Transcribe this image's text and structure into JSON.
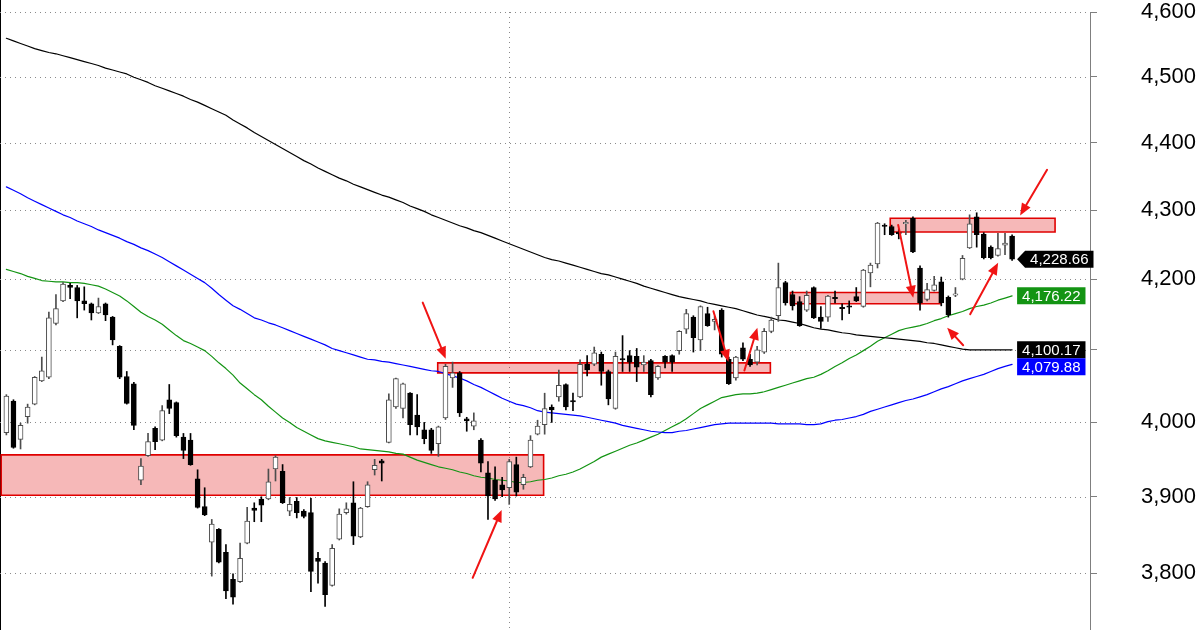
{
  "chart_data": {
    "type": "candlestick",
    "categories": [
      null,
      null,
      null,
      null,
      null,
      null,
      null,
      null,
      null,
      null,
      null,
      null,
      null,
      null,
      null,
      null,
      null,
      null,
      null,
      null,
      null,
      null,
      null,
      null,
      null,
      null,
      null,
      null,
      null,
      null,
      null,
      null,
      null,
      null,
      null,
      null,
      null,
      null,
      null,
      null,
      null,
      null,
      null,
      null,
      null,
      null,
      null,
      null,
      null,
      null,
      null,
      null,
      null,
      null,
      null,
      null,
      null,
      null,
      null,
      null,
      null,
      null,
      null,
      null,
      null,
      null,
      null,
      null,
      null,
      null,
      null,
      null,
      null,
      null,
      null,
      null,
      null,
      null,
      null,
      null,
      null,
      null,
      null,
      null,
      null,
      null,
      null,
      null,
      null,
      null,
      null,
      null,
      null,
      null,
      null,
      null,
      null,
      null,
      null,
      null,
      null,
      null,
      null,
      null,
      null,
      null,
      null,
      null,
      null,
      null,
      null,
      null,
      null,
      null,
      null,
      null,
      null,
      null,
      null,
      null,
      null,
      null,
      null,
      null,
      null,
      null,
      null,
      null,
      null,
      null,
      null,
      null,
      null,
      null,
      null,
      null,
      null,
      null,
      null,
      null,
      null,
      null,
      null
    ],
    "ohlc": [
      [
        3986,
        4038,
        3983,
        4036
      ],
      [
        4029,
        4031,
        3965,
        3966
      ],
      [
        3977,
        3999,
        3964,
        3996
      ],
      [
        4008,
        4025,
        3999,
        4021
      ],
      [
        4025,
        4063,
        4024,
        4062
      ],
      [
        4057,
        4090,
        4056,
        4071
      ],
      [
        4062,
        4153,
        4060,
        4145
      ],
      [
        4137,
        4178,
        4135,
        4158
      ],
      [
        4169,
        4195,
        4168,
        4193
      ],
      [
        4191,
        4194,
        4172,
        4188
      ],
      [
        4188,
        4191,
        4145,
        4169
      ],
      [
        4169,
        4189,
        4156,
        4165
      ],
      [
        4165,
        4166,
        4142,
        4152
      ],
      [
        4152,
        4173,
        4151,
        4161
      ],
      [
        4165,
        4166,
        4141,
        4149
      ],
      [
        4146,
        4147,
        4107,
        4114
      ],
      [
        4105,
        4106,
        4060,
        4062
      ],
      [
        4063,
        4070,
        4025,
        4026
      ],
      [
        4053,
        4055,
        3990,
        3996
      ],
      [
        3922,
        3951,
        3916,
        3941
      ],
      [
        3955,
        3985,
        3954,
        3974
      ],
      [
        3992,
        3994,
        3963,
        3974
      ],
      [
        3976,
        4023,
        3975,
        4016
      ],
      [
        4031,
        4052,
        4012,
        4019
      ],
      [
        4027,
        4028,
        3980,
        3982
      ],
      [
        3980,
        3985,
        3951,
        3962
      ],
      [
        3976,
        3985,
        3942,
        3943
      ],
      [
        3924,
        3936,
        3885,
        3886
      ],
      [
        3887,
        3912,
        3875,
        3876
      ],
      [
        3840,
        3870,
        3796,
        3864
      ],
      [
        3857,
        3858,
        3813,
        3814
      ],
      [
        3827,
        3837,
        3767,
        3777
      ],
      [
        3792,
        3799,
        3760,
        3769
      ],
      [
        3789,
        3839,
        3788,
        3819
      ],
      [
        3839,
        3886,
        3838,
        3868
      ],
      [
        3885,
        3892,
        3867,
        3882
      ],
      [
        3897,
        3900,
        3867,
        3889
      ],
      [
        3897,
        3937,
        3896,
        3920
      ],
      [
        3937,
        3955,
        3921,
        3953
      ],
      [
        3934,
        3943,
        3891,
        3892
      ],
      [
        3881,
        3899,
        3875,
        3890
      ],
      [
        3894,
        3899,
        3872,
        3879
      ],
      [
        3881,
        3883,
        3872,
        3874
      ],
      [
        3879,
        3898,
        3776,
        3802
      ],
      [
        3819,
        3827,
        3787,
        3815
      ],
      [
        3813,
        3815,
        3757,
        3772
      ],
      [
        3784,
        3837,
        3783,
        3832
      ],
      [
        3844,
        3884,
        3843,
        3877
      ],
      [
        3879,
        3892,
        3877,
        3884
      ],
      [
        3892,
        3920,
        3837,
        3848
      ],
      [
        3847,
        3886,
        3846,
        3885
      ],
      [
        3887,
        3920,
        3886,
        3916
      ],
      [
        3936,
        3950,
        3929,
        3942
      ],
      [
        3948,
        3950,
        3921,
        3945
      ],
      [
        3973,
        4039,
        3972,
        4031
      ],
      [
        4021,
        4061,
        4019,
        4060
      ],
      [
        4019,
        4054,
        4006,
        4053
      ],
      [
        4040,
        4041,
        3983,
        3997
      ],
      [
        4010,
        4038,
        3983,
        3994
      ],
      [
        3990,
        4000,
        3971,
        3978
      ],
      [
        3990,
        3992,
        3958,
        3962
      ],
      [
        3971,
        3995,
        3954,
        3994
      ],
      [
        4006,
        4080,
        4004,
        4077
      ],
      [
        4061,
        4083,
        4048,
        4068
      ],
      [
        4068,
        4070,
        4008,
        4013
      ],
      [
        4005,
        4007,
        3988,
        4002
      ],
      [
        3995,
        4013,
        3990,
        4002
      ],
      [
        3976,
        3978,
        3933,
        3945
      ],
      [
        3932,
        3947,
        3870,
        3901
      ],
      [
        3922,
        3940,
        3895,
        3897
      ],
      [
        3916,
        3926,
        3900,
        3909
      ],
      [
        3912,
        3950,
        3890,
        3947
      ],
      [
        3943,
        3953,
        3901,
        3906
      ],
      [
        3916,
        3930,
        3910,
        3926
      ],
      [
        3940,
        3982,
        3939,
        3976
      ],
      [
        3984,
        4003,
        3983,
        3995
      ],
      [
        3997,
        4040,
        3984,
        4019
      ],
      [
        4021,
        4024,
        4000,
        4017
      ],
      [
        4035,
        4072,
        4029,
        4051
      ],
      [
        4052,
        4053,
        4017,
        4021
      ],
      [
        4030,
        4040,
        4016,
        4028
      ],
      [
        4035,
        4086,
        4034,
        4080
      ],
      [
        4080,
        4092,
        4064,
        4072
      ],
      [
        4080,
        4104,
        4078,
        4096
      ],
      [
        4094,
        4097,
        4051,
        4070
      ],
      [
        4070,
        4072,
        4024,
        4032
      ],
      [
        4019,
        4097,
        4018,
        4091
      ],
      [
        4088,
        4120,
        4070,
        4086
      ],
      [
        4092,
        4099,
        4070,
        4083
      ],
      [
        4091,
        4102,
        4056,
        4076
      ],
      [
        4079,
        4092,
        4070,
        4083
      ],
      [
        4085,
        4087,
        4035,
        4038
      ],
      [
        4061,
        4078,
        4059,
        4077
      ],
      [
        4091,
        4092,
        4075,
        4083
      ],
      [
        4092,
        4093,
        4070,
        4083
      ],
      [
        4099,
        4127,
        4094,
        4126
      ],
      [
        4129,
        4157,
        4123,
        4151
      ],
      [
        4146,
        4148,
        4097,
        4117
      ],
      [
        4114,
        4162,
        4099,
        4161
      ],
      [
        4151,
        4160,
        4133,
        4134
      ],
      [
        4140,
        4147,
        4128,
        4143
      ],
      [
        4156,
        4158,
        4090,
        4094
      ],
      [
        4087,
        4090,
        4052,
        4053
      ],
      [
        4061,
        4091,
        4058,
        4090
      ],
      [
        4103,
        4110,
        4085,
        4087
      ],
      [
        4087,
        4094,
        4077,
        4079
      ],
      [
        4083,
        4105,
        4079,
        4100
      ],
      [
        4097,
        4130,
        4095,
        4126
      ],
      [
        4126,
        4146,
        4124,
        4142
      ],
      [
        4148,
        4223,
        4140,
        4188
      ],
      [
        4195,
        4197,
        4163,
        4166
      ],
      [
        4178,
        4183,
        4156,
        4162
      ],
      [
        4168,
        4175,
        4133,
        4134
      ],
      [
        4156,
        4183,
        4154,
        4177
      ],
      [
        4188,
        4189,
        4144,
        4145
      ],
      [
        4146,
        4161,
        4130,
        4140
      ],
      [
        4146,
        4177,
        4140,
        4176
      ],
      [
        4174,
        4183,
        4166,
        4172
      ],
      [
        4160,
        4165,
        4142,
        4158
      ],
      [
        4162,
        4169,
        4151,
        4160
      ],
      [
        4175,
        4188,
        4168,
        4169
      ],
      [
        4161,
        4214,
        4160,
        4213
      ],
      [
        4209,
        4223,
        4189,
        4220
      ],
      [
        4222,
        4282,
        4216,
        4281
      ],
      [
        4278,
        4280,
        4264,
        4276
      ],
      [
        4276,
        4278,
        4263,
        4264
      ],
      [
        4268,
        4272,
        4258,
        4265
      ],
      [
        4280,
        4285,
        4264,
        4282
      ],
      [
        4288,
        4290,
        4238,
        4239
      ],
      [
        4216,
        4219,
        4156,
        4166
      ],
      [
        4171,
        4194,
        4169,
        4185
      ],
      [
        4184,
        4204,
        4183,
        4192
      ],
      [
        4196,
        4203,
        4162,
        4166
      ],
      [
        4174,
        4176,
        4146,
        4149
      ],
      [
        4177,
        4188,
        4175,
        4179
      ],
      [
        4200,
        4234,
        4199,
        4230
      ],
      [
        4245,
        4293,
        4244,
        4280
      ],
      [
        4290,
        4296,
        4246,
        4264
      ],
      [
        4265,
        4267,
        4229,
        4231
      ],
      [
        4246,
        4248,
        4229,
        4231
      ],
      [
        4234,
        4266,
        4233,
        4244
      ],
      [
        4249,
        4266,
        4235,
        4252
      ],
      [
        4262,
        4264,
        4227,
        4228.66
      ]
    ],
    "series": [
      {
        "type": "line",
        "color": "#000000",
        "values": [
          4559,
          4555,
          4551,
          4547,
          4543,
          4540,
          4537,
          4535,
          4532,
          4529,
          4526,
          4523,
          4520,
          4517,
          4513,
          4510,
          4507,
          4504,
          4499,
          4495,
          4491,
          4486,
          4482,
          4478,
          4474,
          4470,
          4465,
          4461,
          4456,
          4451,
          4446,
          4441,
          4434,
          4428,
          4422,
          4415,
          4409,
          4403,
          4397,
          4391,
          4385,
          4379,
          4373,
          4368,
          4362,
          4357,
          4352,
          4347,
          4343,
          4338,
          4334,
          4330,
          4326,
          4322,
          4319,
          4315,
          4311,
          4306,
          4302,
          4298,
          4293,
          4289,
          4285,
          4281,
          4277,
          4274,
          4270,
          4267,
          4263,
          4259,
          4255,
          4251,
          4247,
          4243,
          4239,
          4235,
          4231,
          4228,
          4226,
          4223,
          4220,
          4217,
          4214,
          4211,
          4208,
          4206,
          4203,
          4200,
          4197,
          4194,
          4190,
          4187,
          4184,
          4181,
          4178,
          4175,
          4173,
          4171,
          4169,
          4166,
          4164,
          4162,
          4160,
          4158,
          4155,
          4152,
          4149,
          4147,
          4145,
          4142,
          4141,
          4139,
          4137,
          4134,
          4131,
          4129,
          4128,
          4126,
          4124,
          4123,
          4121,
          4120,
          4119,
          4118,
          4117,
          4116,
          4115,
          4114,
          4113,
          4112,
          4110,
          4109,
          4107,
          4105,
          4103,
          4101,
          4100,
          4100,
          4100,
          4100,
          4100,
          4100,
          4100.17
        ],
        "value_labels": [
          null,
          null,
          null,
          null,
          null,
          null,
          null,
          null,
          null,
          null,
          null,
          null,
          null,
          null,
          null,
          null,
          null,
          null,
          null,
          null,
          null,
          null,
          null,
          null,
          null,
          null,
          null,
          null,
          null,
          null,
          null,
          null,
          null,
          null,
          null,
          null,
          null,
          null,
          null,
          null,
          null,
          null,
          null,
          null,
          null,
          null,
          null,
          null,
          null,
          null,
          null,
          null,
          null,
          null,
          null,
          null,
          null,
          null,
          null,
          null,
          null,
          null,
          null,
          null,
          null,
          null,
          null,
          null,
          null,
          null,
          null,
          null,
          null,
          null,
          null,
          null,
          null,
          null,
          null,
          null,
          null,
          null,
          null,
          null,
          null,
          null,
          null,
          null,
          null,
          null,
          null,
          null,
          null,
          null,
          null,
          null,
          null,
          null,
          null,
          null,
          null,
          null,
          null,
          null,
          null,
          null,
          null,
          null,
          null,
          null,
          null,
          null,
          null,
          null,
          null,
          null,
          null,
          null,
          null,
          null,
          null,
          null,
          null,
          null,
          null,
          null,
          null,
          null,
          null,
          null,
          null,
          null,
          null,
          null,
          null,
          null,
          null,
          null,
          null,
          null,
          null,
          null,
          "4,100.17"
        ]
      },
      {
        "type": "line",
        "color": "#0000ff",
        "values": [
          4334,
          4329,
          4324,
          4318,
          4313,
          4308,
          4303,
          4298,
          4293,
          4289,
          4284,
          4280,
          4276,
          4271,
          4267,
          4263,
          4259,
          4254,
          4250,
          4245,
          4241,
          4236,
          4231,
          4225,
          4219,
          4213,
          4207,
          4201,
          4195,
          4187,
          4178,
          4170,
          4162,
          4157,
          4151,
          4145,
          4142,
          4138,
          4135,
          4131,
          4127,
          4123,
          4119,
          4115,
          4111,
          4107,
          4102,
          4099,
          4096,
          4093,
          4090,
          4087,
          4086,
          4084,
          4083,
          4081,
          4079,
          4077,
          4075,
          4073,
          4071,
          4070,
          4067,
          4064,
          4061,
          4057,
          4052,
          4048,
          4043,
          4038,
          4033,
          4029,
          4025,
          4023,
          4020,
          4016,
          4014,
          4013,
          4012,
          4011,
          4010,
          4009,
          4007,
          4005,
          4003,
          4001,
          3999,
          3996,
          3994,
          3992,
          3990,
          3988,
          3987,
          3986,
          3986,
          3988,
          3989,
          3991,
          3993,
          3995,
          3997,
          3998,
          3999,
          3999,
          3999,
          3999,
          3999,
          3999,
          3999,
          3998,
          3998,
          3998,
          3998,
          3997,
          3997,
          3998,
          4001,
          4003,
          4004,
          4006,
          4008,
          4011,
          4015,
          4018,
          4021,
          4024,
          4027,
          4030,
          4032,
          4035,
          4038,
          4042,
          4046,
          4049,
          4053,
          4057,
          4060,
          4063,
          4066,
          4070,
          4074,
          4077,
          4079.88
        ],
        "value_labels": [
          null,
          null,
          null,
          null,
          null,
          null,
          null,
          null,
          null,
          null,
          null,
          null,
          null,
          null,
          null,
          null,
          null,
          null,
          null,
          null,
          null,
          null,
          null,
          null,
          null,
          null,
          null,
          null,
          null,
          null,
          null,
          null,
          null,
          null,
          null,
          null,
          null,
          null,
          null,
          null,
          null,
          null,
          null,
          null,
          null,
          null,
          null,
          null,
          null,
          null,
          null,
          null,
          null,
          null,
          null,
          null,
          null,
          null,
          null,
          null,
          null,
          null,
          null,
          null,
          null,
          null,
          null,
          null,
          null,
          null,
          null,
          null,
          null,
          null,
          null,
          null,
          null,
          null,
          null,
          null,
          null,
          null,
          null,
          null,
          null,
          null,
          null,
          null,
          null,
          null,
          null,
          null,
          null,
          null,
          null,
          null,
          null,
          null,
          null,
          null,
          null,
          null,
          null,
          null,
          null,
          null,
          null,
          null,
          null,
          null,
          null,
          null,
          null,
          null,
          null,
          null,
          null,
          null,
          null,
          null,
          null,
          null,
          null,
          null,
          null,
          null,
          null,
          null,
          null,
          null,
          null,
          null,
          null,
          null,
          null,
          null,
          null,
          null,
          null,
          null,
          null,
          null,
          "4,079.88"
        ]
      },
      {
        "type": "line",
        "color": "#139413",
        "values": [
          4214,
          4211,
          4208,
          4204,
          4201,
          4198,
          4197,
          4196,
          4196,
          4195,
          4195,
          4194,
          4192,
          4190,
          4186,
          4181,
          4176,
          4169,
          4161,
          4153,
          4147,
          4142,
          4136,
          4128,
          4120,
          4113,
          4109,
          4104,
          4099,
          4091,
          4082,
          4074,
          4065,
          4054,
          4046,
          4038,
          4031,
          4022,
          4014,
          4006,
          4000,
          3993,
          3988,
          3983,
          3978,
          3975,
          3973,
          3971,
          3969,
          3967,
          3964,
          3963,
          3962,
          3961,
          3960,
          3958,
          3957,
          3953,
          3949,
          3946,
          3943,
          3940,
          3938,
          3936,
          3933,
          3931,
          3928,
          3926,
          3925,
          3923,
          3922,
          3921,
          3919,
          3919,
          3920,
          3922,
          3923,
          3925,
          3928,
          3930,
          3933,
          3937,
          3942,
          3947,
          3953,
          3957,
          3961,
          3965,
          3969,
          3972,
          3976,
          3980,
          3984,
          3989,
          3994,
          3999,
          4005,
          4012,
          4019,
          4024,
          4029,
          4034,
          4036,
          4038,
          4039,
          4039,
          4040,
          4042,
          4045,
          4048,
          4051,
          4054,
          4057,
          4060,
          4062,
          4066,
          4071,
          4077,
          4082,
          4088,
          4093,
          4099,
          4105,
          4112,
          4117,
          4122,
          4127,
          4130,
          4132,
          4134,
          4137,
          4141,
          4144,
          4148,
          4151,
          4154,
          4158,
          4161,
          4163,
          4166,
          4170,
          4173,
          4176.22
        ],
        "value_labels": [
          null,
          null,
          null,
          null,
          null,
          null,
          null,
          null,
          null,
          null,
          null,
          null,
          null,
          null,
          null,
          null,
          null,
          null,
          null,
          null,
          null,
          null,
          null,
          null,
          null,
          null,
          null,
          null,
          null,
          null,
          null,
          null,
          null,
          null,
          null,
          null,
          null,
          null,
          null,
          null,
          null,
          null,
          null,
          null,
          null,
          null,
          null,
          null,
          null,
          null,
          null,
          null,
          null,
          null,
          null,
          null,
          null,
          null,
          null,
          null,
          null,
          null,
          null,
          null,
          null,
          null,
          null,
          null,
          null,
          null,
          null,
          null,
          null,
          null,
          null,
          null,
          null,
          null,
          null,
          null,
          null,
          null,
          null,
          null,
          null,
          null,
          null,
          null,
          null,
          null,
          null,
          null,
          null,
          null,
          null,
          null,
          null,
          null,
          null,
          null,
          null,
          null,
          null,
          null,
          null,
          null,
          null,
          null,
          null,
          null,
          null,
          null,
          null,
          null,
          null,
          null,
          null,
          null,
          null,
          null,
          null,
          null,
          null,
          null,
          null,
          null,
          null,
          null,
          null,
          null,
          null,
          null,
          null,
          null,
          null,
          null,
          null,
          null,
          null,
          null,
          null,
          null,
          "4,176.22"
        ]
      }
    ],
    "annotations": [
      "4,228.66"
    ],
    "bands": [
      {
        "axis": "y",
        "from": 3902,
        "to": 3956,
        "color": "#e00000"
      },
      {
        "axis": "y",
        "from": 4068,
        "to": 4082,
        "color": "#e00000"
      },
      {
        "axis": "y",
        "from": 4165,
        "to": 4181,
        "color": "#e00000"
      },
      {
        "axis": "y",
        "from": 4268,
        "to": 4288,
        "color": "#e00000"
      }
    ],
    "ylim": [
      3727,
      4600
    ],
    "yticks": [
      {
        "value": 3800,
        "label": "3,800"
      },
      {
        "value": 3900,
        "label": "3,900"
      },
      {
        "value": 4000,
        "label": "4,000"
      },
      {
        "value": 4100,
        "label": null
      },
      {
        "value": 4200,
        "label": "4,200"
      },
      {
        "value": 4300,
        "label": "4,300"
      },
      {
        "value": 4400,
        "label": "4,400"
      },
      {
        "value": 4500,
        "label": "4,500"
      },
      {
        "value": 4600,
        "label": "4,600"
      }
    ],
    "log": true,
    "grid": "y",
    "tick_labels": "y"
  }
}
